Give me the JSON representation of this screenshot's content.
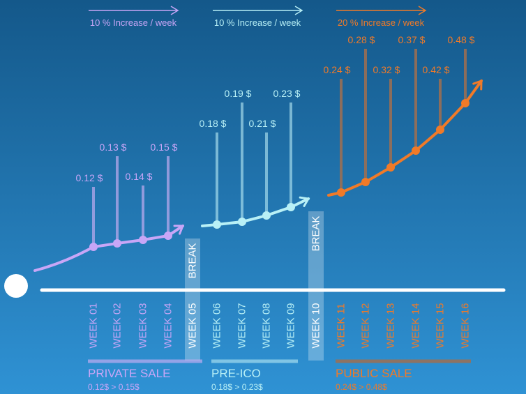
{
  "phases": [
    {
      "increase": "10 % Increase / week",
      "name": "PRIVATE SALE",
      "range": "0.12$  >  0.15$",
      "weeks": [
        {
          "label": "WEEK 01",
          "price": "0.12 $"
        },
        {
          "label": "WEEK 02",
          "price": "0.13 $"
        },
        {
          "label": "WEEK 03",
          "price": "0.14 $"
        },
        {
          "label": "WEEK 04",
          "price": "0.15 $"
        }
      ]
    },
    {
      "increase": "10 % Increase / week",
      "name": "PRE-ICO",
      "range": "0.18$  >  0.23$",
      "weeks": [
        {
          "label": "WEEK 06",
          "price": "0.18 $"
        },
        {
          "label": "WEEK 07",
          "price": "0.19 $"
        },
        {
          "label": "WEEK 08",
          "price": "0.21 $"
        },
        {
          "label": "WEEK 09",
          "price": "0.23 $"
        }
      ]
    },
    {
      "increase": "20 % Increase / week",
      "name": "PUBLIC SALE",
      "range": "0.24$  >  0.48$",
      "weeks": [
        {
          "label": "WEEK 11",
          "price": "0.24 $"
        },
        {
          "label": "WEEK 12",
          "price": "0.28 $"
        },
        {
          "label": "WEEK 13",
          "price": "0.32 $"
        },
        {
          "label": "WEEK 14",
          "price": "0.37 $"
        },
        {
          "label": "WEEK 15",
          "price": "0.42 $"
        },
        {
          "label": "WEEK 16",
          "price": "0.48 $"
        }
      ]
    }
  ],
  "breaks": [
    {
      "label": "BREAK",
      "week": "WEEK 05"
    },
    {
      "label": "BREAK",
      "week": "WEEK 10"
    }
  ]
}
